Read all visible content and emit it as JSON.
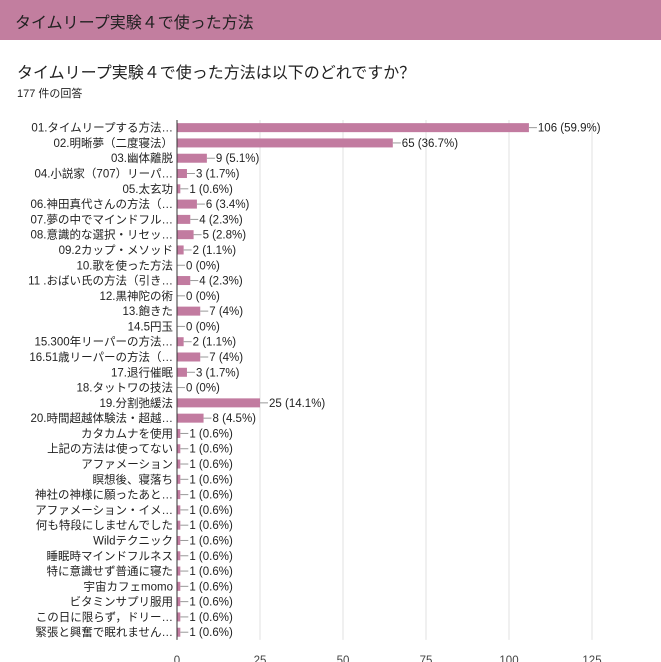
{
  "header": {
    "title": "タイムリープ実験４で使った方法"
  },
  "question": {
    "title": "タイムリープ実験４で使った方法は以下のどれですか？",
    "response_count": "177 件の回答"
  },
  "colors": {
    "header": "#c27e9f",
    "bar": "#c27ba0",
    "grid": "#e0e0e0",
    "axis": "#333333"
  },
  "chart_data": {
    "type": "bar",
    "orientation": "horizontal",
    "title": "",
    "xlabel": "",
    "ylabel": "",
    "xlim": [
      0,
      125
    ],
    "xticks": [
      0,
      25,
      50,
      75,
      100,
      125
    ],
    "grid": true,
    "total": 177,
    "categories": [
      "01.タイムリープする方法…",
      "02.明晰夢（二度寝法）",
      "03.幽体離脱",
      "04.小説家（707）リーパ…",
      "05.太玄功",
      "06.神田真代さんの方法（…",
      "07.夢の中でマインドフル…",
      "08.意識的な選択・リセッ…",
      "09.2カップ・メソッド",
      "10.歌を使った方法",
      "11 .おばい氏の方法（引き…",
      "12.黒神陀の術",
      "13.飽きた",
      "14.5円玉",
      "15.300年リーパーの方法…",
      "16.51歳リーパーの方法（…",
      "17.退行催眠",
      "18.タットワの技法",
      "19.分割弛緩法",
      "20.時間超越体験法・超越…",
      "カタカムナを使用",
      "上記の方法は使ってない",
      "アファメーション",
      "瞑想後、寝落ち",
      "神社の神様に願ったあと…",
      "アファメーション・イメ…",
      "何も特段にしませんでした",
      "Wildテクニック",
      "睡眠時マインドフルネス",
      "特に意識せず普通に寝た",
      "宇宙カフェmomo",
      "ビタミンサプリ服用",
      "この日に限らず，ドリー…",
      "緊張と興奮で眠れません…"
    ],
    "values": [
      106,
      65,
      9,
      3,
      1,
      6,
      4,
      5,
      2,
      0,
      4,
      0,
      7,
      0,
      2,
      7,
      3,
      0,
      25,
      8,
      1,
      1,
      1,
      1,
      1,
      1,
      1,
      1,
      1,
      1,
      1,
      1,
      1,
      1
    ],
    "data_labels": [
      "106 (59.9%)",
      "65 (36.7%)",
      "9 (5.1%)",
      "3 (1.7%)",
      "1 (0.6%)",
      "6 (3.4%)",
      "4 (2.3%)",
      "5 (2.8%)",
      "2 (1.1%)",
      "0 (0%)",
      "4 (2.3%)",
      "0 (0%)",
      "7 (4%)",
      "0 (0%)",
      "2 (1.1%)",
      "7 (4%)",
      "3 (1.7%)",
      "0 (0%)",
      "25 (14.1%)",
      "8 (4.5%)",
      "1 (0.6%)",
      "1 (0.6%)",
      "1 (0.6%)",
      "1 (0.6%)",
      "1 (0.6%)",
      "1 (0.6%)",
      "1 (0.6%)",
      "1 (0.6%)",
      "1 (0.6%)",
      "1 (0.6%)",
      "1 (0.6%)",
      "1 (0.6%)",
      "1 (0.6%)",
      "1 (0.6%)"
    ]
  }
}
